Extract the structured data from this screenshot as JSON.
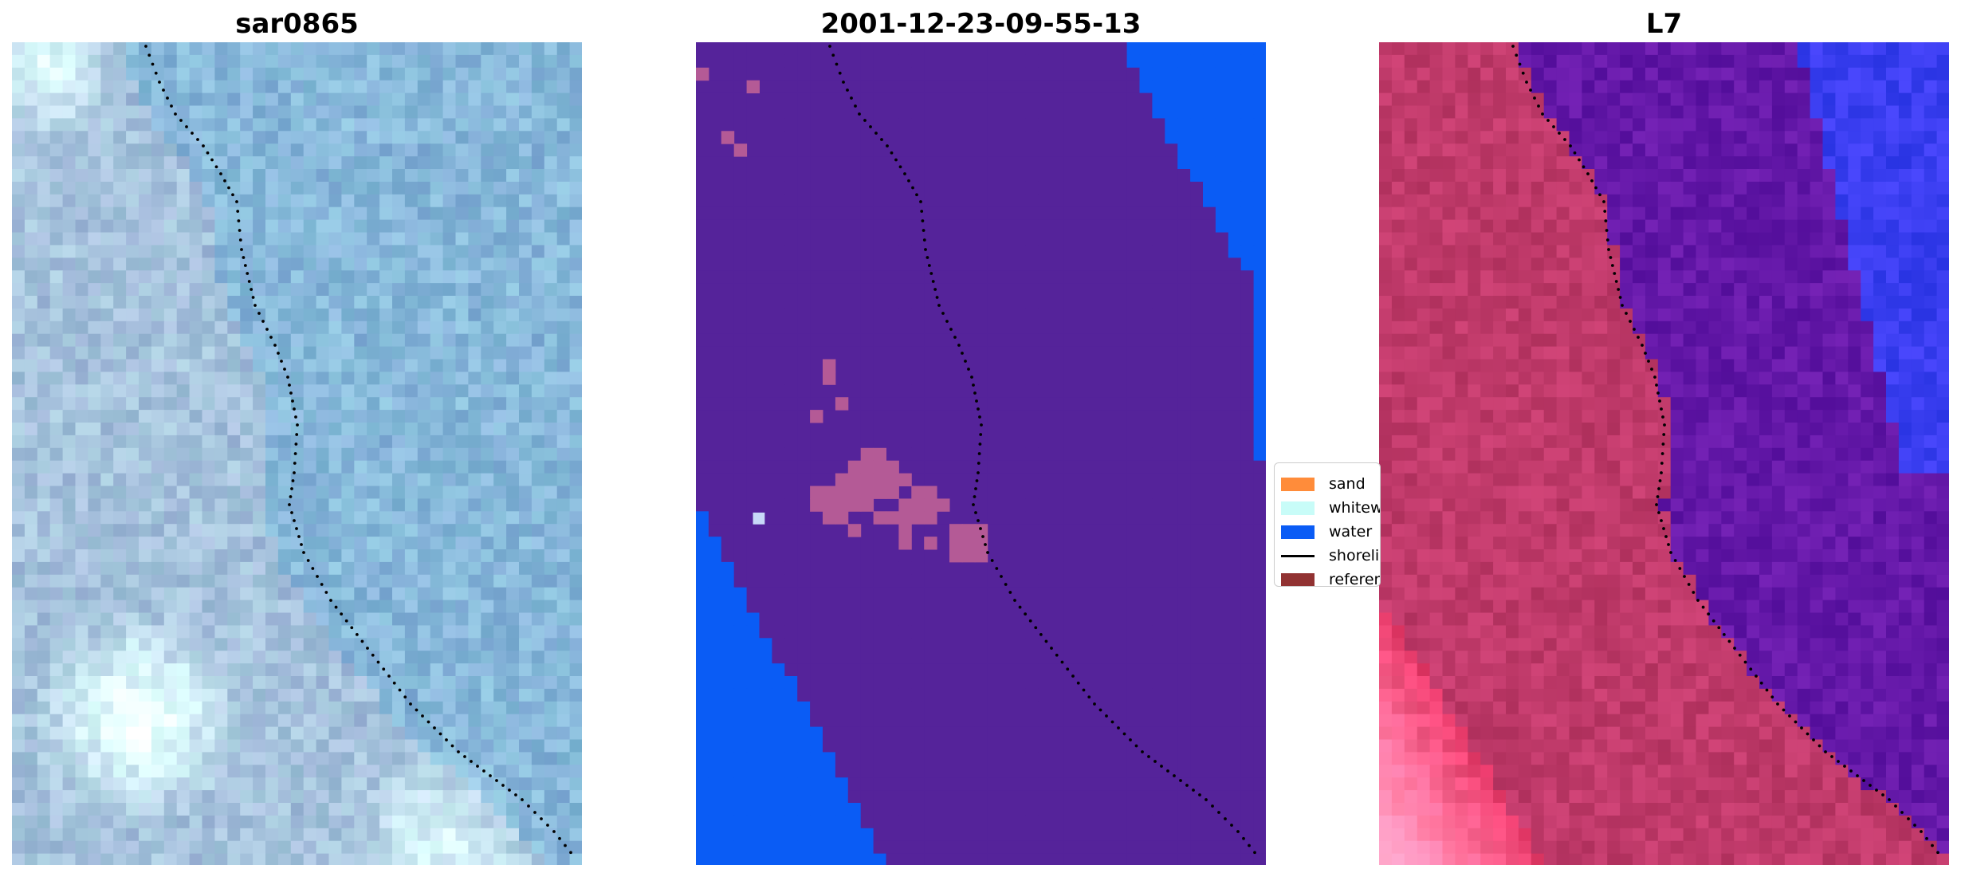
{
  "panels": [
    {
      "title": "sar0865"
    },
    {
      "title": "2001-12-23-09-55-13"
    },
    {
      "title": "L7"
    }
  ],
  "legend": {
    "entries": [
      {
        "label": "sand",
        "color": "#ff8c3a",
        "type": "patch"
      },
      {
        "label": "whitewater",
        "color": "#c8fcf8",
        "type": "patch"
      },
      {
        "label": "water",
        "color": "#0a5cf5",
        "type": "patch"
      },
      {
        "label": "shoreline",
        "color": "#000000",
        "type": "line"
      },
      {
        "label": "reference",
        "color": "#913232",
        "type": "patch"
      }
    ]
  },
  "colors": {
    "land_class": "#55239a",
    "water_class": "#0a5cf5",
    "sand_class": "#b45a96",
    "whitewater_class": "#c8d8f8",
    "shoreline_dots": "#000000",
    "sar_base": "#8fb0d4",
    "l7_land": "#c03a6a",
    "l7_sea": "#6418a8",
    "l7_water": "#3a3ef0"
  }
}
